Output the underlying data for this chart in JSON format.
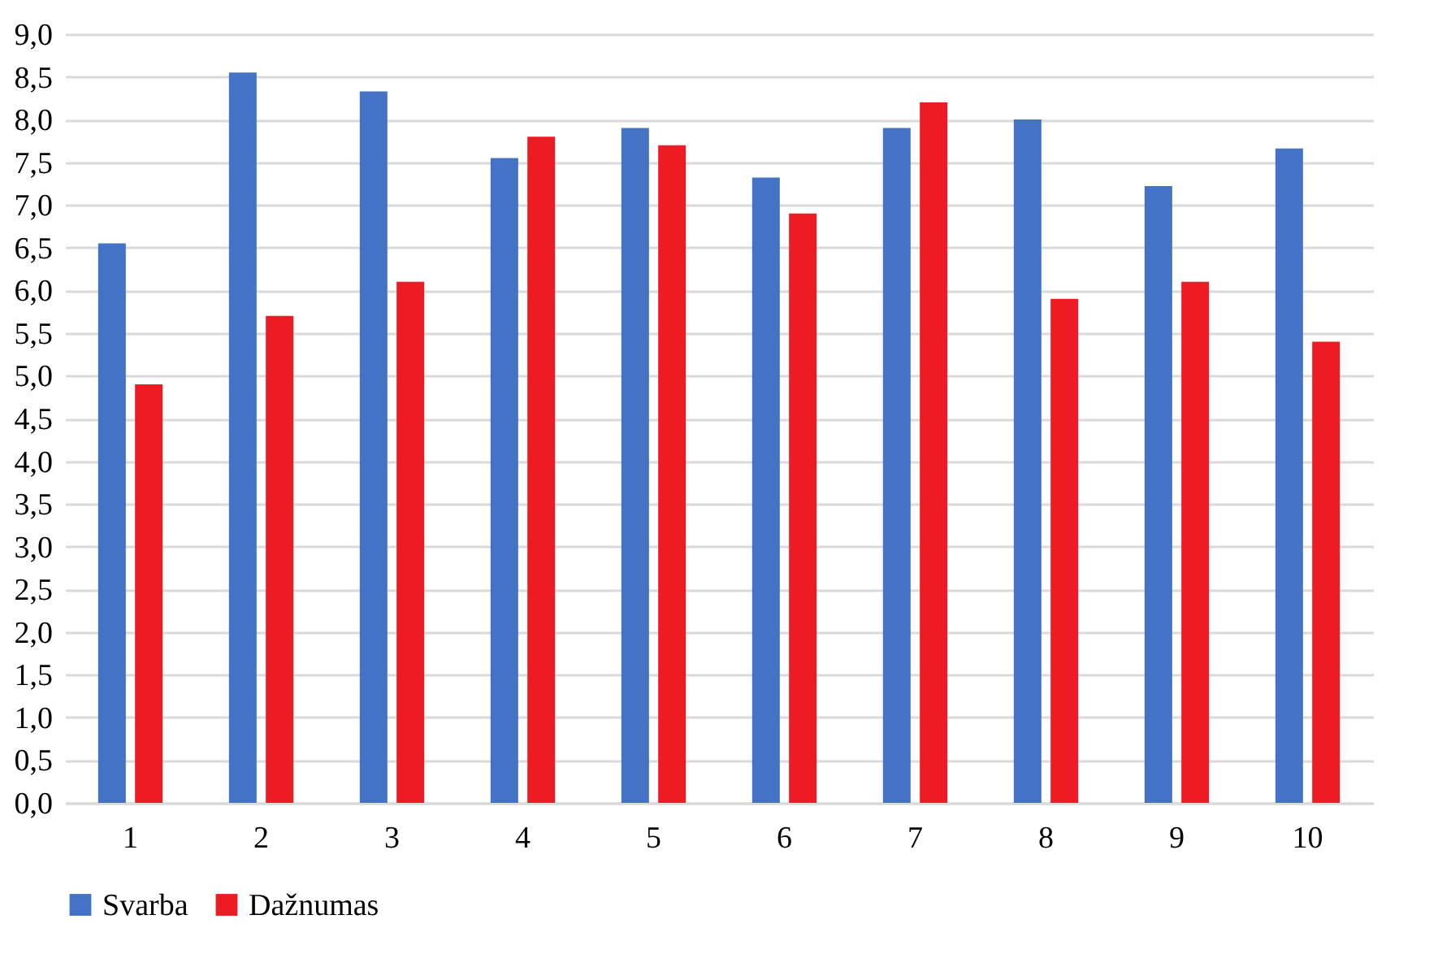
{
  "chart_data": {
    "type": "bar",
    "categories": [
      "1",
      "2",
      "3",
      "4",
      "5",
      "6",
      "7",
      "8",
      "9",
      "10"
    ],
    "series": [
      {
        "name": "Svarba",
        "color": "#4472c4",
        "values": [
          6.55,
          8.55,
          8.33,
          7.55,
          7.9,
          7.32,
          7.9,
          8.0,
          7.22,
          7.66
        ]
      },
      {
        "name": "Dažnumas",
        "color": "#ed1c24",
        "values": [
          4.9,
          5.7,
          6.1,
          7.8,
          7.7,
          6.9,
          8.2,
          5.9,
          6.1,
          5.4
        ]
      }
    ],
    "ylim": [
      0,
      9
    ],
    "yticks": [
      {
        "value": 0,
        "label": "0,0"
      },
      {
        "value": 0.5,
        "label": "0,5"
      },
      {
        "value": 1,
        "label": "1,0"
      },
      {
        "value": 1.5,
        "label": "1,5"
      },
      {
        "value": 2,
        "label": "2,0"
      },
      {
        "value": 2.5,
        "label": "2,5"
      },
      {
        "value": 3,
        "label": "3,0"
      },
      {
        "value": 3.5,
        "label": "3,5"
      },
      {
        "value": 4,
        "label": "4,0"
      },
      {
        "value": 4.5,
        "label": "4,5"
      },
      {
        "value": 5,
        "label": "5,0"
      },
      {
        "value": 5.5,
        "label": "5,5"
      },
      {
        "value": 6,
        "label": "6,0"
      },
      {
        "value": 6.5,
        "label": "6,5"
      },
      {
        "value": 7,
        "label": "7,0"
      },
      {
        "value": 7.5,
        "label": "7,5"
      },
      {
        "value": 8,
        "label": "8,0"
      },
      {
        "value": 8.5,
        "label": "8,5"
      },
      {
        "value": 9,
        "label": "9,0"
      }
    ],
    "grid": "y",
    "legend": "bottom"
  }
}
